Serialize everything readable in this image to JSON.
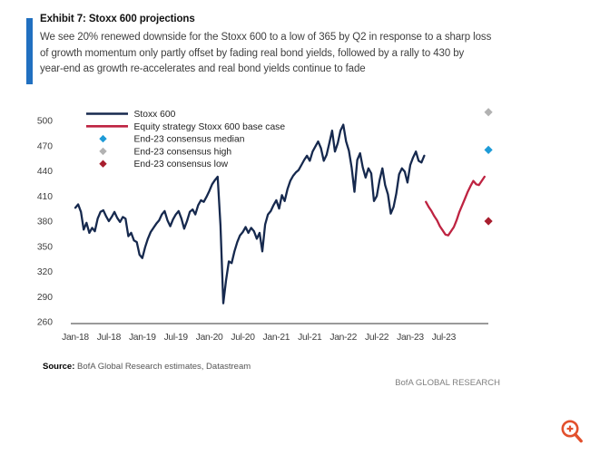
{
  "header": {
    "exhibit_title": "Exhibit 7: Stoxx 600 projections",
    "description_lines": [
      "We see 20% renewed downside for the Stoxx 600 to a low of 365 by Q2 in response to a sharp loss",
      "of growth momentum only partly offset by fading real bond yields, followed by a rally to 430 by",
      "year-end as growth re-accelerates and real bond yields continue to fade"
    ]
  },
  "footer": {
    "source_label": "Source:",
    "source_text": " BofA Global Research estimates, Datastream",
    "brand": "BofA GLOBAL RESEARCH"
  },
  "icons": {
    "zoom_in": "magnifier-plus-icon",
    "zoom_in_color": "#e2502d"
  },
  "colors": {
    "accent_bar": "#2170c0",
    "stoxx_line": "#16294e",
    "base_case_line": "#be2341",
    "consensus_median": "#1e9bd7",
    "consensus_high": "#b2b2b2",
    "consensus_low": "#a81e2e",
    "axis_line": "#9a9a9a",
    "axis_text": "#3d3d3d"
  },
  "chart_data": {
    "type": "line",
    "title": "Stoxx 600 projections",
    "xlabel": "",
    "ylabel": "",
    "grid": false,
    "legend_position": "top-left",
    "x_axis": {
      "labels": [
        "Jan-18",
        "Jul-18",
        "Jan-19",
        "Jul-19",
        "Jan-20",
        "Jul-20",
        "Jan-21",
        "Jul-21",
        "Jan-22",
        "Jul-22",
        "Jan-23",
        "Jul-23"
      ],
      "months_between_labels": 6
    },
    "y_axis": {
      "ticks": [
        260,
        290,
        320,
        350,
        380,
        410,
        440,
        470,
        500
      ],
      "min": 260,
      "max": 500
    },
    "series": [
      {
        "name": "Stoxx 600",
        "color": "#16294e",
        "swatch": "line",
        "start_month": 0,
        "month_step": 0.5,
        "values": [
          396,
          400,
          391,
          370,
          378,
          366,
          372,
          368,
          383,
          391,
          393,
          386,
          380,
          385,
          391,
          384,
          379,
          385,
          383,
          362,
          366,
          357,
          355,
          340,
          336,
          349,
          359,
          367,
          372,
          377,
          381,
          388,
          392,
          381,
          374,
          382,
          388,
          392,
          383,
          371,
          380,
          391,
          394,
          388,
          399,
          405,
          403,
          409,
          416,
          424,
          429,
          433,
          375,
          282,
          310,
          332,
          330,
          344,
          355,
          363,
          367,
          373,
          366,
          372,
          368,
          359,
          366,
          344,
          376,
          388,
          392,
          399,
          405,
          395,
          411,
          404,
          418,
          428,
          434,
          438,
          441,
          447,
          453,
          458,
          452,
          463,
          469,
          475,
          467,
          452,
          459,
          473,
          488,
          463,
          473,
          488,
          495,
          475,
          464,
          444,
          415,
          453,
          461,
          444,
          432,
          443,
          437,
          404,
          410,
          429,
          443,
          423,
          412,
          389,
          397,
          413,
          436,
          443,
          439,
          426,
          447,
          456,
          463,
          452,
          450,
          458
        ]
      },
      {
        "name": "Equity strategy Stoxx 600 base case",
        "color": "#be2341",
        "swatch": "line",
        "start_month": 62.8,
        "month_step": 0.5,
        "values": [
          403,
          397,
          392,
          386,
          381,
          374,
          369,
          364,
          363,
          368,
          373,
          381,
          391,
          399,
          407,
          415,
          422,
          428,
          424,
          423,
          428,
          433
        ]
      }
    ],
    "markers": [
      {
        "name": "End-23 consensus median",
        "color": "#1e9bd7",
        "month": 74,
        "value": 465
      },
      {
        "name": "End-23 consensus high",
        "color": "#b2b2b2",
        "month": 74,
        "value": 510
      },
      {
        "name": "End-23 consensus low",
        "color": "#a81e2e",
        "month": 74,
        "value": 380
      }
    ],
    "projection_notes": {
      "q2_low": 365,
      "year_end_target": 430
    }
  }
}
